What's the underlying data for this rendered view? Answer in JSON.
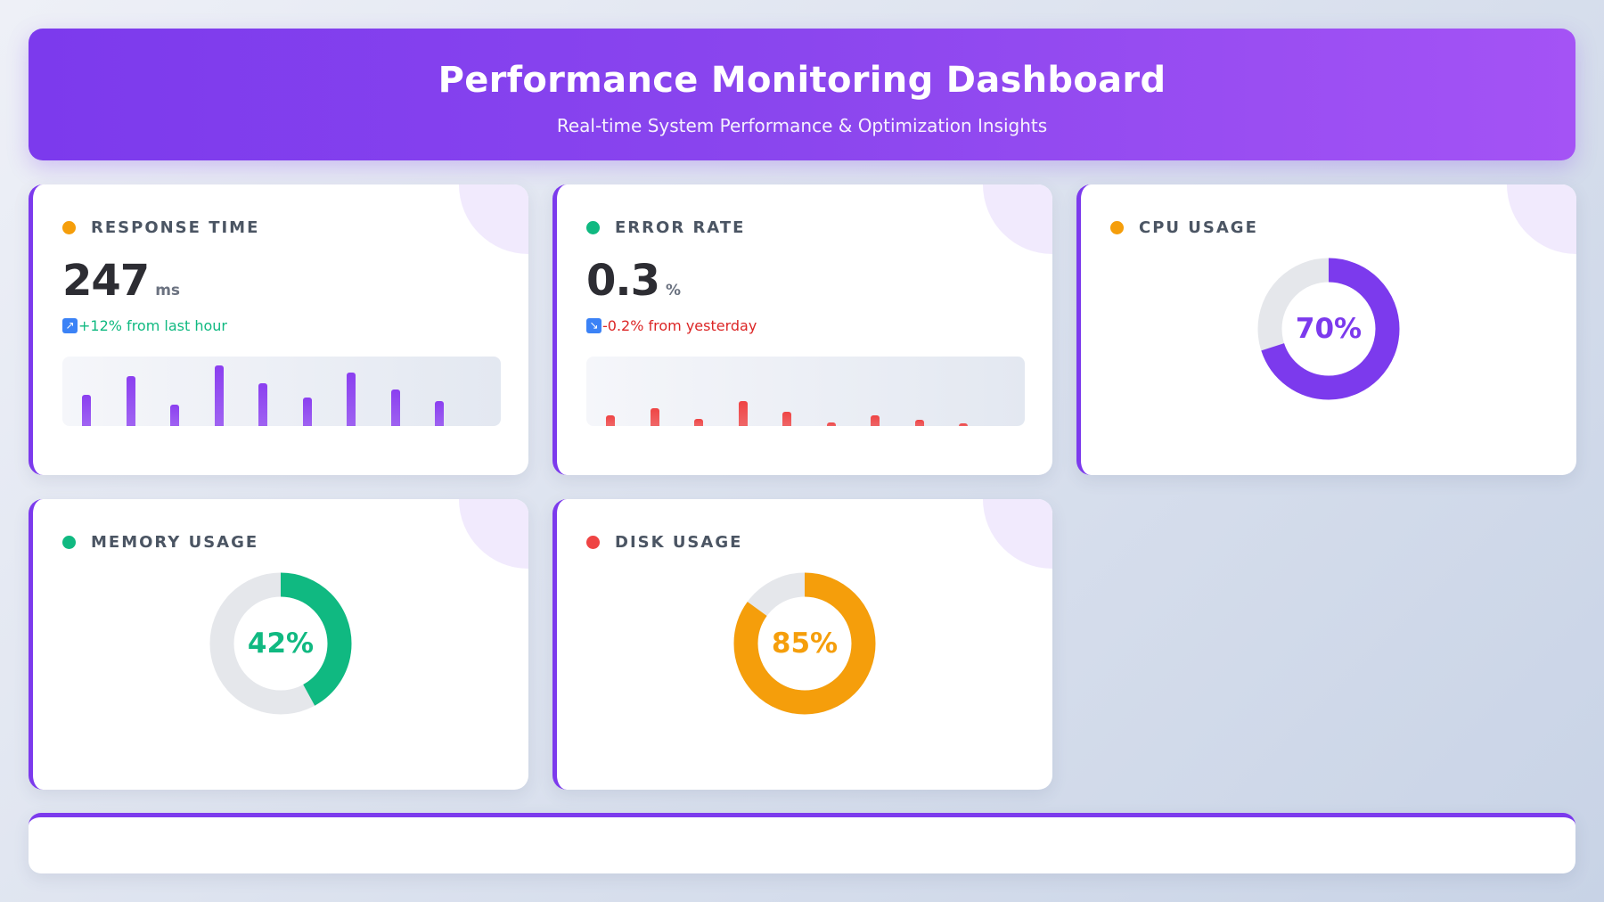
{
  "header": {
    "title": "Performance Monitoring Dashboard",
    "subtitle": "Real-time System Performance & Optimization Insights"
  },
  "cards": {
    "response": {
      "label": "RESPONSE TIME",
      "dot_color": "#f59e0b",
      "value": "247",
      "unit": "ms",
      "trend_text": "+12% from last hour",
      "trend_color": "#10b981",
      "trend_icon": "arrow-up-right-icon",
      "bar_color": "#8b3ff0",
      "bars": [
        0.52,
        0.83,
        0.35,
        1.0,
        0.71,
        0.47,
        0.88,
        0.6,
        0.41
      ]
    },
    "error": {
      "label": "ERROR RATE",
      "dot_color": "#10b981",
      "value": "0.3",
      "unit": "%",
      "trend_text": "-0.2% from yesterday",
      "trend_color": "#dc2626",
      "trend_icon": "arrow-down-right-icon",
      "bar_color": "#ef4444",
      "bars": [
        0.17,
        0.29,
        0.12,
        0.41,
        0.23,
        0.06,
        0.17,
        0.1,
        0.04
      ]
    },
    "cpu": {
      "label": "CPU USAGE",
      "dot_color": "#f59e0b",
      "percent": 70,
      "value_text": "70%",
      "ring_color": "#7c3aed"
    },
    "memory": {
      "label": "MEMORY USAGE",
      "dot_color": "#10b981",
      "percent": 42,
      "value_text": "42%",
      "ring_color": "#10b981"
    },
    "disk": {
      "label": "DISK USAGE",
      "dot_color": "#ef4444",
      "percent": 85,
      "value_text": "85%",
      "ring_color": "#f59e0b"
    }
  },
  "colors": {
    "accent": "#7c3aed",
    "ring_track": "#e5e7eb"
  }
}
